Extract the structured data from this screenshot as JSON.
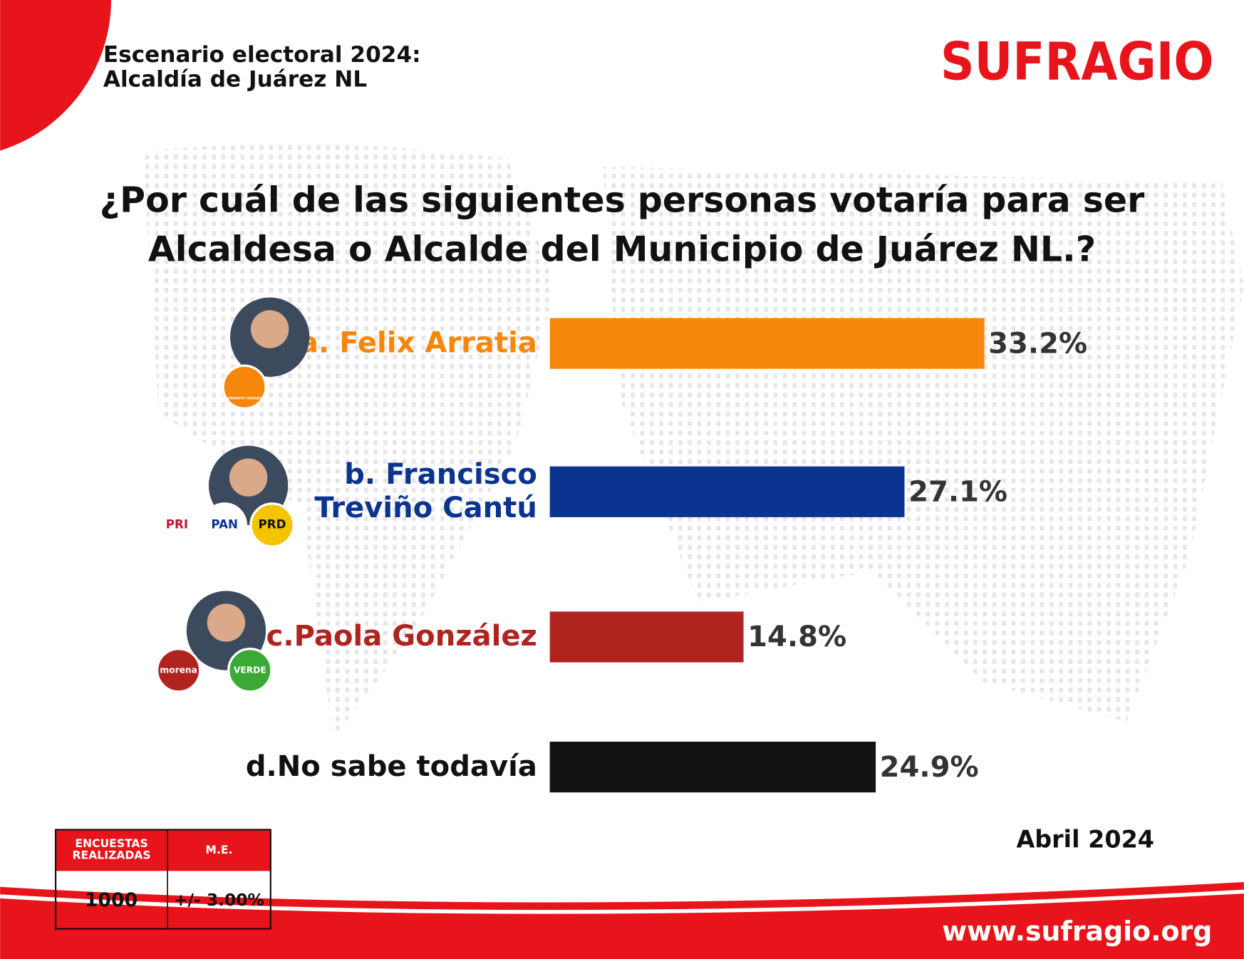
{
  "header": {
    "title_lines": [
      "Escenario electoral 2024:",
      "Alcaldía de Juárez NL"
    ],
    "logo": "SUFRAGIO"
  },
  "chart_data": {
    "type": "bar",
    "orientation": "horizontal",
    "title": "¿Por cuál de las siguientes personas votaría para ser\nAlcaldesa o Alcalde del Municipio de Juárez NL.?",
    "categories": [
      "a. Felix Arratia",
      "b. Francisco\nTreviño Cantú",
      "c.Paola González",
      "d.No sabe todavía"
    ],
    "values": [
      33.2,
      27.1,
      14.8,
      24.9
    ],
    "value_labels": [
      "33.2%",
      "27.1%",
      "14.8%",
      "24.9%"
    ],
    "colors": [
      "#f7870a",
      "#0a3490",
      "#b02420",
      "#111111"
    ],
    "label_colors": [
      "#f7870a",
      "#0a3490",
      "#b02420",
      "#111111"
    ]
  },
  "party_logos": [
    [
      "MOVIMIENTO CIUDADANO"
    ],
    [
      "PRI",
      "PAN",
      "PRD"
    ],
    [
      "morena",
      "VERDE"
    ],
    []
  ],
  "footer": {
    "table": {
      "headers": [
        "ENCUESTAS\nREALIZADAS",
        "M.E."
      ],
      "row": [
        "1000",
        "+/- 3.00%"
      ]
    },
    "date": "Abril 2024",
    "url": "www.sufragio.org"
  }
}
